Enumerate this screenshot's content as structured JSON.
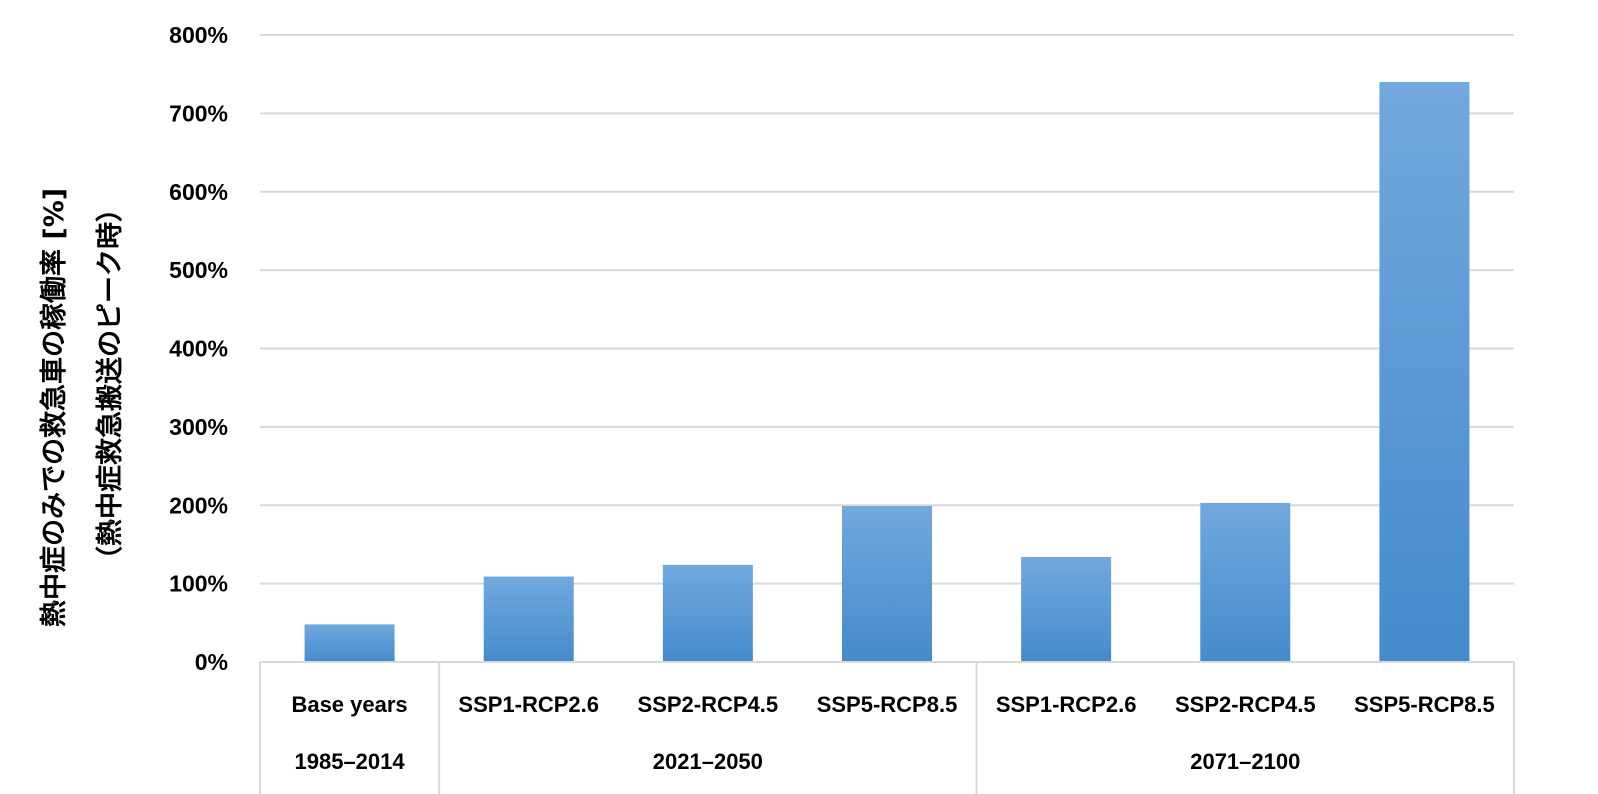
{
  "chart_data": {
    "type": "bar",
    "ylabel_line1": "熱中症のみでの救急車の稼働率 [%]",
    "ylabel_line2": "（熱中症救急搬送のピーク時）",
    "ylim": [
      0,
      800
    ],
    "yticks": [
      "0%",
      "100%",
      "200%",
      "300%",
      "400%",
      "500%",
      "600%",
      "700%",
      "800%"
    ],
    "grid": true,
    "bar_color_top": "#72a8de",
    "bar_color_bottom": "#448bcc",
    "categories": [
      "Base years",
      "SSP1-RCP2.6",
      "SSP2-RCP4.5",
      "SSP5-RCP8.5",
      "SSP1-RCP2.6",
      "SSP2-RCP4.5",
      "SSP5-RCP8.5"
    ],
    "values": [
      48,
      109,
      124,
      199,
      134,
      203,
      740
    ],
    "groups": [
      {
        "label": "1985–2014",
        "span": 1
      },
      {
        "label": "2021–2050",
        "span": 3
      },
      {
        "label": "2071–2100",
        "span": 3
      }
    ]
  }
}
